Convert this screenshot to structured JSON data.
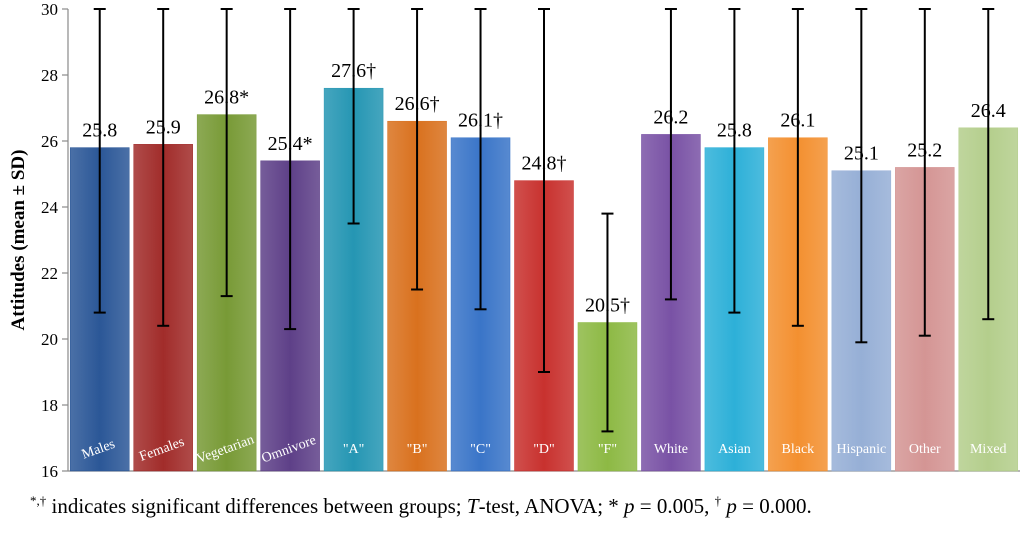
{
  "chart_data": {
    "type": "bar",
    "title": "",
    "xlabel": "",
    "ylabel": "Attitudes (mean ± SD)",
    "ylim": [
      16,
      30
    ],
    "yticks": [
      16,
      18,
      20,
      22,
      24,
      26,
      28,
      30
    ],
    "grid": false,
    "bars": [
      {
        "category": "Males",
        "value": 25.8,
        "label": "25.8",
        "sd": 5.0,
        "color": "#2B5797"
      },
      {
        "category": "Females",
        "value": 25.9,
        "label": "25.9",
        "sd": 5.5,
        "color": "#A12C2A"
      },
      {
        "category": "Vegetarian",
        "value": 26.8,
        "label": "26.8*",
        "sd": 5.5,
        "color": "#789A36"
      },
      {
        "category": "Omnivore",
        "value": 25.4,
        "label": "25.4*",
        "sd": 5.1,
        "color": "#5E4088"
      },
      {
        "category": "\"A\"",
        "value": 27.6,
        "label": "27.6†",
        "sd": 4.1,
        "color": "#2596B3"
      },
      {
        "category": "\"B\"",
        "value": 26.6,
        "label": "26.6†",
        "sd": 5.1,
        "color": "#D9711E"
      },
      {
        "category": "\"C\"",
        "value": 26.1,
        "label": "26.1†",
        "sd": 5.2,
        "color": "#3A75C8"
      },
      {
        "category": "\"D\"",
        "value": 24.8,
        "label": "24.8†",
        "sd": 5.8,
        "color": "#C8312E"
      },
      {
        "category": "\"F\"",
        "value": 20.5,
        "label": "20.5†",
        "sd": 3.3,
        "color": "#8DB944"
      },
      {
        "category": "White",
        "value": 26.2,
        "label": "26.2",
        "sd": 5.0,
        "color": "#7952A5"
      },
      {
        "category": "Asian",
        "value": 25.8,
        "label": "25.8",
        "sd": 5.0,
        "color": "#2DB0D8"
      },
      {
        "category": "Black",
        "value": 26.1,
        "label": "26.1",
        "sd": 5.7,
        "color": "#F39030"
      },
      {
        "category": "Hispanic",
        "value": 25.1,
        "label": "25.1",
        "sd": 5.2,
        "color": "#96AFD6"
      },
      {
        "category": "Other",
        "value": 25.2,
        "label": "25.2",
        "sd": 5.1,
        "color": "#D49594"
      },
      {
        "category": "Mixed",
        "value": 26.4,
        "label": "26.4",
        "sd": 5.8,
        "color": "#B4CE8C"
      }
    ]
  },
  "footnote": {
    "marks": "*,†",
    "text_a": " indicates significant differences between groups; ",
    "t_letter": "T",
    "text_b": "-test, ANOVA; * ",
    "p1_letter": "p",
    "p1_rest": " = 0.005, ",
    "dagger": "†",
    "p2_letter": "p",
    "p2_rest": " = 0.000."
  }
}
